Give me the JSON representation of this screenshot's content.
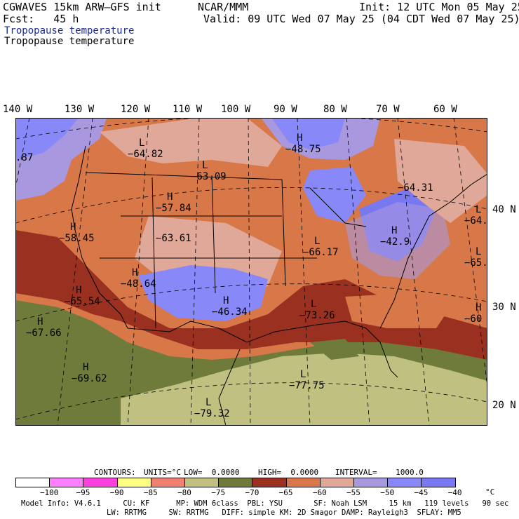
{
  "header": {
    "model": "CGWAVES 15km ARW–GFS init",
    "org": "NCAR/MMM",
    "init": "Init: 12 UTC Mon 05 May 25",
    "fcst": "Fcst:   45 h",
    "valid": "Valid: 09 UTC Wed 07 May 25 (04 CDT Wed 07 May 25)",
    "field_title_1": "Tropopause temperature",
    "field_title_2": "Tropopause temperature"
  },
  "axes": {
    "lon_labels": [
      "140 W",
      "130 W",
      "120 W",
      "110 W",
      "100 W",
      "90 W",
      "80 W",
      "70 W",
      "60 W"
    ],
    "lat_labels": [
      "40 N",
      "30 N",
      "20 N"
    ]
  },
  "map_labels": [
    {
      "sym": "L",
      "value": "−64.82"
    },
    {
      "sym": "L",
      "value": "−63.09"
    },
    {
      "sym": "H",
      "value": "−48.75"
    },
    {
      "sym": "",
      "value": "−64.31"
    },
    {
      "sym": "L",
      "value": "−64."
    },
    {
      "sym": "H",
      "value": "−57.84"
    },
    {
      "sym": "H",
      "value": "−58.45"
    },
    {
      "sym": "",
      "value": "−63.61"
    },
    {
      "sym": "H",
      "value": "−42.9"
    },
    {
      "sym": "L",
      "value": "−66.17"
    },
    {
      "sym": "L",
      "value": "−65."
    },
    {
      "sym": "H",
      "value": "−48.64"
    },
    {
      "sym": "H",
      "value": "−65.54"
    },
    {
      "sym": "H",
      "value": "−46.34"
    },
    {
      "sym": "L",
      "value": "−73.26"
    },
    {
      "sym": "H",
      "value": "−60"
    },
    {
      "sym": "H",
      "value": "−67.66"
    },
    {
      "sym": "H",
      "value": "−69.62"
    },
    {
      "sym": "L",
      "value": "−77.75"
    },
    {
      "sym": "L",
      "value": "−79.32"
    },
    {
      "sym": "",
      "value": ".87"
    }
  ],
  "contour_info": {
    "contours": "CONTOURS:",
    "units": "UNITS=°C",
    "low": "LOW=  0.0000",
    "high": "HIGH=  0.0000",
    "interval": "INTERVAL=    1000.0"
  },
  "colorbar": {
    "colors": [
      "#ffffff",
      "#ff80ff",
      "#ff40e0",
      "#ffff80",
      "#f08070",
      "#c0c080",
      "#6e7b3a",
      "#9a3020",
      "#d87848",
      "#e0a898",
      "#a898e0",
      "#8888f8",
      "#7878f0"
    ],
    "ticks": [
      "−100",
      "−95",
      "−90",
      "−85",
      "−80",
      "−75",
      "−70",
      "−65",
      "−60",
      "−55",
      "−50",
      "−45",
      "−40"
    ],
    "unit": "°C"
  },
  "footer": {
    "line1": "Model Info: V4.6.1     CU: KF      MP: WDM 6class  PBL: YSU       SF: Noah LSM     15 km   119 levels   90 sec",
    "line2": "LW: RRTMG     SW: RRTMG   DIFF: simple KM: 2D Smagor DAMP: Rayleigh3  SFLAY: MM5"
  }
}
